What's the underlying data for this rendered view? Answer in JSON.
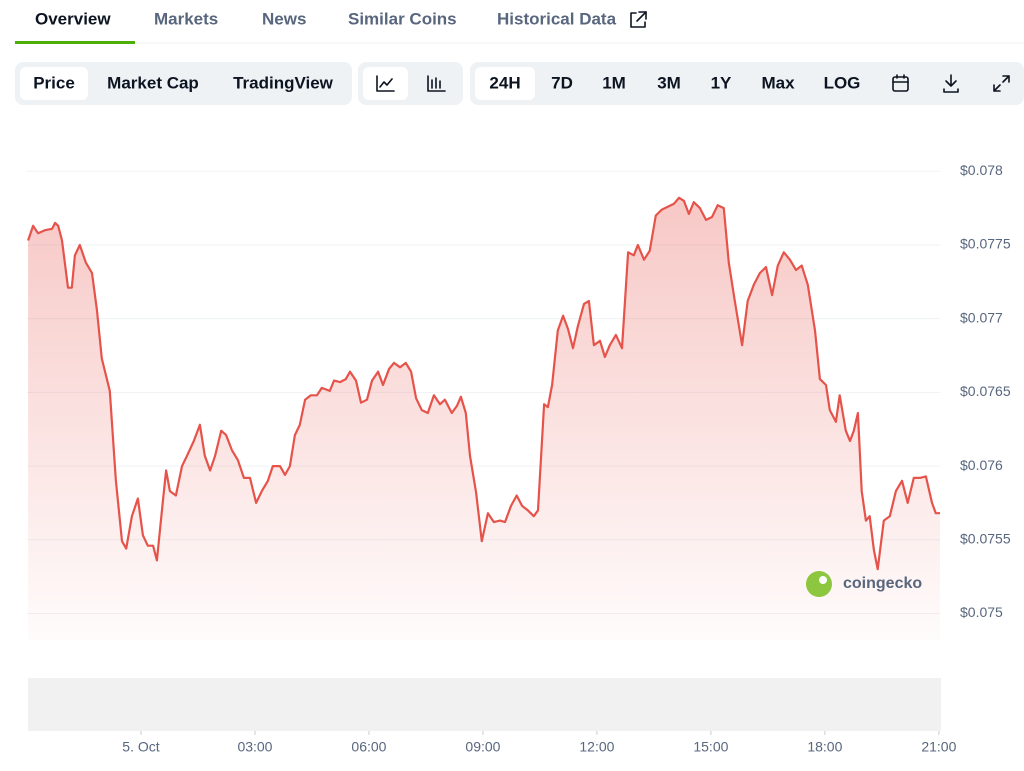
{
  "tabs": [
    "Overview",
    "Markets",
    "News",
    "Similar Coins",
    "Historical Data"
  ],
  "toolbar": {
    "metric": [
      "Price",
      "Market Cap",
      "TradingView"
    ],
    "ranges": [
      "24H",
      "7D",
      "1M",
      "3M",
      "1Y",
      "Max",
      "LOG"
    ]
  },
  "chart_data": {
    "type": "area",
    "color": "#e5534b",
    "watermark": "coingecko",
    "xlim": [
      -3,
      21.03
    ],
    "xticks": [
      {
        "value": 0,
        "label": "5. Oct"
      },
      {
        "value": 3,
        "label": "03:00"
      },
      {
        "value": 6,
        "label": "06:00"
      },
      {
        "value": 9,
        "label": "09:00"
      },
      {
        "value": 12,
        "label": "12:00"
      },
      {
        "value": 15,
        "label": "15:00"
      },
      {
        "value": 18,
        "label": "18:00"
      },
      {
        "value": 21,
        "label": "21:00"
      }
    ],
    "ylim": [
      0.07482,
      0.07828
    ],
    "yticks": [
      {
        "value": 0.075,
        "label": "$0.075"
      },
      {
        "value": 0.0755,
        "label": "$0.0755"
      },
      {
        "value": 0.076,
        "label": "$0.076"
      },
      {
        "value": 0.0765,
        "label": "$0.0765"
      },
      {
        "value": 0.077,
        "label": "$0.077"
      },
      {
        "value": 0.0775,
        "label": "$0.0775"
      },
      {
        "value": 0.078,
        "label": "$0.078"
      }
    ],
    "grid": true,
    "x": [
      -2.97,
      -2.84,
      -2.71,
      -2.53,
      -2.34,
      -2.26,
      -2.18,
      -2.08,
      -1.92,
      -1.82,
      -1.74,
      -1.61,
      -1.45,
      -1.29,
      -1.16,
      -1.03,
      -0.82,
      -0.66,
      -0.5,
      -0.39,
      -0.24,
      -0.08,
      0.05,
      0.18,
      0.32,
      0.42,
      0.58,
      0.66,
      0.76,
      0.92,
      1.08,
      1.21,
      1.39,
      1.55,
      1.68,
      1.82,
      1.95,
      2.11,
      2.24,
      2.39,
      2.55,
      2.71,
      2.87,
      3.03,
      3.18,
      3.34,
      3.47,
      3.66,
      3.79,
      3.92,
      4.05,
      4.18,
      4.32,
      4.47,
      4.63,
      4.76,
      4.97,
      5.08,
      5.24,
      5.39,
      5.5,
      5.66,
      5.79,
      5.95,
      6.08,
      6.24,
      6.37,
      6.53,
      6.66,
      6.82,
      6.97,
      7.11,
      7.24,
      7.39,
      7.55,
      7.71,
      7.87,
      8.0,
      8.18,
      8.32,
      8.42,
      8.55,
      8.66,
      8.82,
      8.97,
      9.13,
      9.29,
      9.45,
      9.58,
      9.74,
      9.89,
      10.03,
      10.18,
      10.34,
      10.45,
      10.61,
      10.71,
      10.82,
      10.97,
      11.11,
      11.24,
      11.37,
      11.5,
      11.66,
      11.79,
      11.92,
      12.08,
      12.21,
      12.34,
      12.5,
      12.66,
      12.82,
      12.97,
      13.08,
      13.24,
      13.39,
      13.55,
      13.71,
      13.87,
      14.03,
      14.16,
      14.29,
      14.42,
      14.55,
      14.71,
      14.87,
      15.03,
      15.18,
      15.34,
      15.47,
      15.63,
      15.82,
      15.97,
      16.13,
      16.29,
      16.45,
      16.61,
      16.76,
      16.92,
      17.08,
      17.24,
      17.39,
      17.55,
      17.74,
      17.87,
      18.03,
      18.13,
      18.29,
      18.39,
      18.55,
      18.66,
      18.76,
      18.87,
      18.97,
      19.08,
      19.18,
      19.29,
      19.39,
      19.55,
      19.71,
      19.87,
      20.03,
      20.18,
      20.34,
      20.5,
      20.66,
      20.82,
      20.92,
      21.03
    ],
    "values": [
      0.07753,
      0.07763,
      0.07758,
      0.0776,
      0.07761,
      0.07765,
      0.07763,
      0.07753,
      0.07721,
      0.07721,
      0.07743,
      0.0775,
      0.07738,
      0.07731,
      0.07706,
      0.07673,
      0.07651,
      0.0759,
      0.07549,
      0.07544,
      0.07566,
      0.07578,
      0.07553,
      0.07546,
      0.07546,
      0.07536,
      0.07577,
      0.07597,
      0.07583,
      0.0758,
      0.076,
      0.07607,
      0.07617,
      0.07628,
      0.07607,
      0.07597,
      0.07607,
      0.07624,
      0.07621,
      0.07611,
      0.07604,
      0.07592,
      0.07592,
      0.07575,
      0.07583,
      0.0759,
      0.076,
      0.076,
      0.07594,
      0.076,
      0.07621,
      0.07628,
      0.07645,
      0.07648,
      0.07648,
      0.07653,
      0.07651,
      0.07658,
      0.07657,
      0.07659,
      0.07664,
      0.07658,
      0.07643,
      0.07645,
      0.07658,
      0.07664,
      0.07655,
      0.07666,
      0.0767,
      0.07667,
      0.0767,
      0.07664,
      0.07646,
      0.07638,
      0.07636,
      0.07648,
      0.07642,
      0.07645,
      0.07636,
      0.07641,
      0.07647,
      0.07636,
      0.07607,
      0.07582,
      0.07549,
      0.07568,
      0.07562,
      0.07563,
      0.07562,
      0.07573,
      0.0758,
      0.07573,
      0.0757,
      0.07566,
      0.0757,
      0.07642,
      0.0764,
      0.07655,
      0.07692,
      0.07702,
      0.07693,
      0.0768,
      0.07695,
      0.0771,
      0.07712,
      0.07682,
      0.07685,
      0.07674,
      0.07682,
      0.07689,
      0.0768,
      0.07745,
      0.07743,
      0.0775,
      0.0774,
      0.07746,
      0.0777,
      0.07774,
      0.07776,
      0.07778,
      0.07782,
      0.0778,
      0.07771,
      0.07779,
      0.07775,
      0.07767,
      0.07769,
      0.07777,
      0.07775,
      0.07738,
      0.07712,
      0.07682,
      0.07712,
      0.07723,
      0.07731,
      0.07735,
      0.07716,
      0.07736,
      0.07745,
      0.0774,
      0.07733,
      0.07736,
      0.07723,
      0.07692,
      0.07659,
      0.07655,
      0.07638,
      0.0763,
      0.07648,
      0.07624,
      0.07617,
      0.07624,
      0.07636,
      0.07583,
      0.07563,
      0.07566,
      0.07543,
      0.0753,
      0.07563,
      0.07566,
      0.07583,
      0.0759,
      0.07575,
      0.07592,
      0.07592,
      0.07593,
      0.07575,
      0.07568,
      0.07568
    ]
  }
}
